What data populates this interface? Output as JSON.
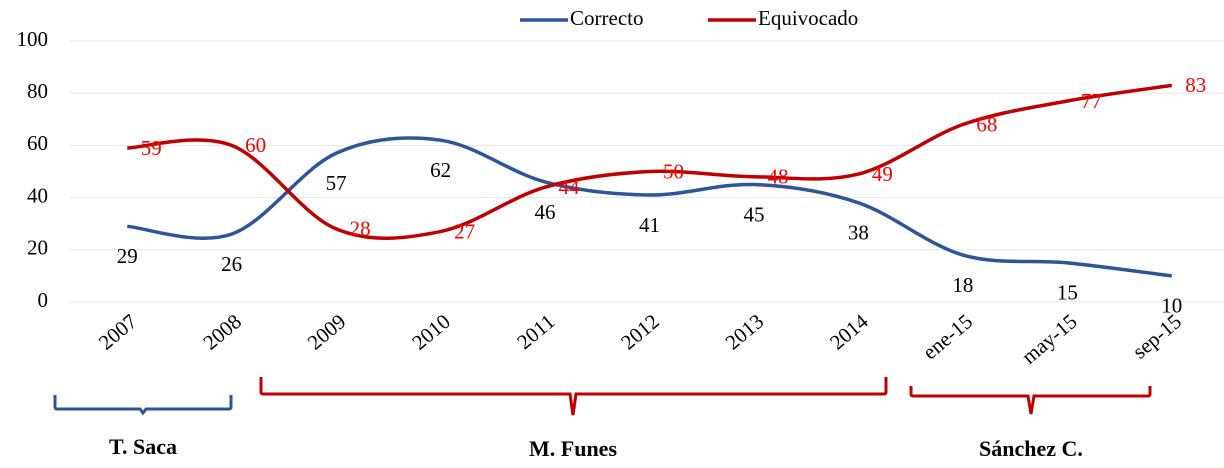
{
  "chart_data": {
    "type": "line",
    "categories": [
      "2007",
      "2008",
      "2009",
      "2010",
      "2011",
      "2012",
      "2013",
      "2014",
      "ene-15",
      "may-15",
      "sep-15"
    ],
    "series": [
      {
        "name": "Correcto",
        "color": "#2e5597",
        "label_color": "#000000",
        "values": [
          29,
          26,
          57,
          62,
          46,
          41,
          45,
          38,
          18,
          15,
          10
        ]
      },
      {
        "name": "Equivocado",
        "color": "#c00000",
        "label_color": "#ff0000",
        "values": [
          59,
          60,
          28,
          27,
          44,
          50,
          48,
          49,
          68,
          77,
          83
        ]
      }
    ],
    "ylim": [
      0,
      100
    ],
    "yticks": [
      0,
      20,
      40,
      60,
      80,
      100
    ],
    "grid": true,
    "smooth": true,
    "legend": "top",
    "groups": [
      "T. Saca",
      "M. Funes",
      "Sánchez C."
    ]
  }
}
